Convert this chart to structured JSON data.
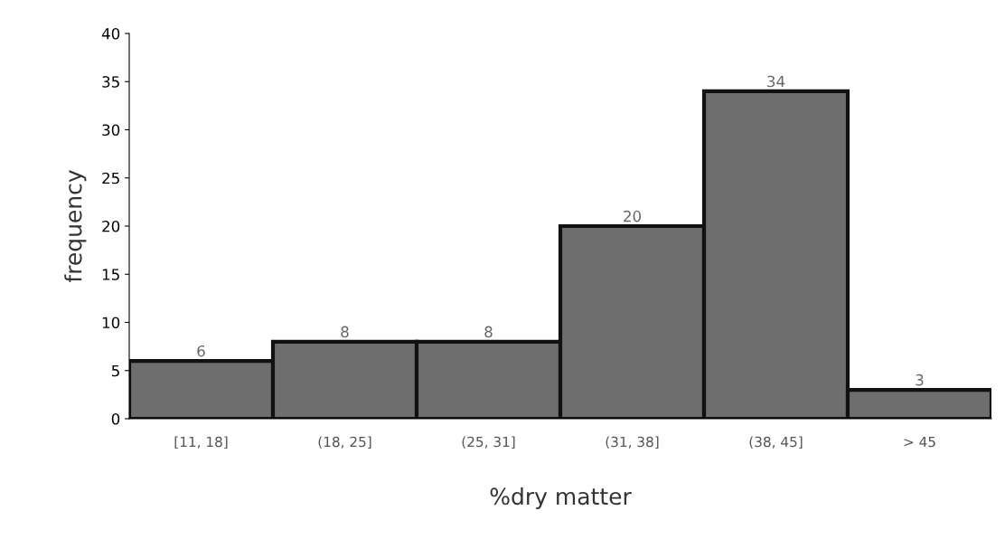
{
  "chart_data": {
    "type": "bar",
    "xlabel": "%dry matter",
    "ylabel": "frequency",
    "categories": [
      "[11, 18]",
      "(18, 25]",
      "(25, 31]",
      "(31, 38]",
      "(38, 45]",
      "> 45"
    ],
    "values": [
      6,
      8,
      8,
      20,
      34,
      3
    ],
    "color": "#6e6e6e",
    "ylim": [
      0,
      40
    ],
    "yticks": [
      0,
      5,
      10,
      15,
      20,
      25,
      30,
      35,
      40
    ],
    "grid": false,
    "data_labels": true
  }
}
